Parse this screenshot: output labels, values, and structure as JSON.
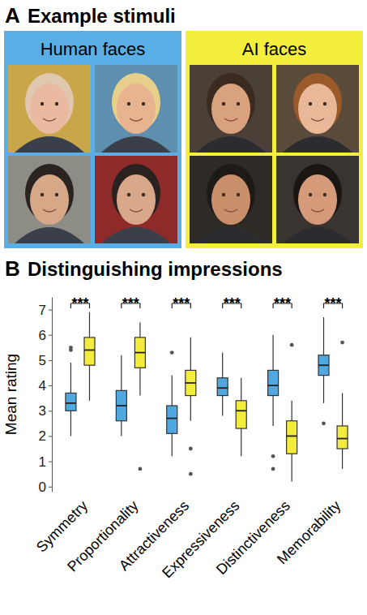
{
  "panel_a": {
    "letter": "A",
    "title": "Example stimuli",
    "groups": [
      {
        "label": "Human faces",
        "color": "#5aaee6"
      },
      {
        "label": "AI faces",
        "color": "#f4ef3d"
      }
    ]
  },
  "chart_data": {
    "panel": "B",
    "type": "box",
    "title": "Distinguishing impressions",
    "y_label": "Mean rating",
    "categories": [
      "Symmetry",
      "Proportionality",
      "Attractiveness",
      "Expressiveness",
      "Distinctiveness",
      "Memorability"
    ],
    "series": [
      {
        "color": "#4fa8e0",
        "boxes": [
          {
            "min": 2.0,
            "q1": 3.0,
            "median": 3.3,
            "q3": 3.7,
            "max": 4.9,
            "outliers": [
              5.4,
              5.5
            ]
          },
          {
            "min": 2.0,
            "q1": 2.6,
            "median": 3.2,
            "q3": 3.8,
            "max": 5.2,
            "outliers": []
          },
          {
            "min": 1.2,
            "q1": 2.1,
            "median": 2.7,
            "q3": 3.2,
            "max": 4.4,
            "outliers": [
              5.3
            ]
          },
          {
            "min": 2.8,
            "q1": 3.6,
            "median": 3.9,
            "q3": 4.3,
            "max": 5.3,
            "outliers": []
          },
          {
            "min": 2.4,
            "q1": 3.6,
            "median": 4.0,
            "q3": 4.6,
            "max": 6.0,
            "outliers": [
              1.2,
              0.7
            ]
          },
          {
            "min": 3.3,
            "q1": 4.4,
            "median": 4.8,
            "q3": 5.2,
            "max": 6.7,
            "outliers": [
              2.5
            ]
          }
        ]
      },
      {
        "color": "#f4ec3a",
        "boxes": [
          {
            "min": 3.4,
            "q1": 4.8,
            "median": 5.4,
            "q3": 5.9,
            "max": 6.9,
            "outliers": []
          },
          {
            "min": 3.6,
            "q1": 4.7,
            "median": 5.3,
            "q3": 5.9,
            "max": 6.5,
            "outliers": [
              0.7
            ]
          },
          {
            "min": 2.6,
            "q1": 3.6,
            "median": 4.1,
            "q3": 4.6,
            "max": 5.9,
            "outliers": [
              1.5,
              0.5
            ]
          },
          {
            "min": 1.2,
            "q1": 2.3,
            "median": 3.0,
            "q3": 3.4,
            "max": 4.3,
            "outliers": []
          },
          {
            "min": 0.2,
            "q1": 1.3,
            "median": 2.0,
            "q3": 2.6,
            "max": 3.4,
            "outliers": [
              5.6
            ]
          },
          {
            "min": 0.7,
            "q1": 1.5,
            "median": 1.9,
            "q3": 2.4,
            "max": 3.7,
            "outliers": [
              5.7
            ]
          }
        ]
      }
    ],
    "significance": [
      "***",
      "***",
      "***",
      "***",
      "***",
      "***"
    ],
    "ylim": [
      -0.2,
      7.5
    ],
    "yticks": [
      0,
      1,
      2,
      3,
      4,
      5,
      6,
      7
    ]
  }
}
